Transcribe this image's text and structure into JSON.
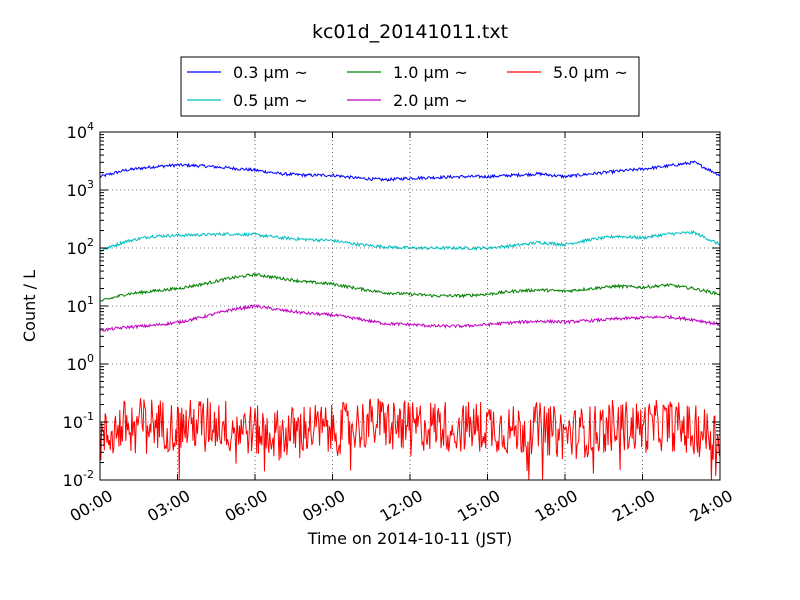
{
  "chart_data": {
    "type": "line",
    "title": "kc01d_20141011.txt",
    "xlabel": "Time on 2014-10-11 (JST)",
    "ylabel": "Count / L",
    "x_unit": "hours",
    "xlim": [
      0,
      24
    ],
    "ylim": [
      0.01,
      10000
    ],
    "yscale": "log",
    "grid": true,
    "legend_position": "top-center",
    "x_ticks": [
      {
        "value": 0,
        "label": "00:00"
      },
      {
        "value": 3,
        "label": "03:00"
      },
      {
        "value": 6,
        "label": "06:00"
      },
      {
        "value": 9,
        "label": "09:00"
      },
      {
        "value": 12,
        "label": "12:00"
      },
      {
        "value": 15,
        "label": "15:00"
      },
      {
        "value": 18,
        "label": "18:00"
      },
      {
        "value": 21,
        "label": "21:00"
      },
      {
        "value": 24,
        "label": "24:00"
      }
    ],
    "y_ticks": [
      {
        "value": 0.01,
        "base": "10",
        "exp": "-2"
      },
      {
        "value": 0.1,
        "base": "10",
        "exp": "-1"
      },
      {
        "value": 1,
        "base": "10",
        "exp": "0"
      },
      {
        "value": 10,
        "base": "10",
        "exp": "1"
      },
      {
        "value": 100,
        "base": "10",
        "exp": "2"
      },
      {
        "value": 1000,
        "base": "10",
        "exp": "3"
      },
      {
        "value": 10000,
        "base": "10",
        "exp": "4"
      }
    ],
    "series": [
      {
        "name": "0.3 μm ~",
        "color": "#0000ff",
        "x": [
          0,
          1,
          2,
          3,
          4,
          5,
          6,
          7,
          8,
          9,
          10,
          11,
          12,
          13,
          14,
          15,
          16,
          17,
          18,
          19,
          20,
          21,
          22,
          23,
          24
        ],
        "values": [
          1700,
          2200,
          2500,
          2700,
          2600,
          2400,
          2200,
          1900,
          1800,
          1800,
          1600,
          1500,
          1600,
          1650,
          1700,
          1700,
          1800,
          1900,
          1700,
          1900,
          2100,
          2300,
          2600,
          3000,
          1800
        ]
      },
      {
        "name": "0.5 μm ~",
        "color": "#00bfbf",
        "x": [
          0,
          1,
          2,
          3,
          4,
          5,
          6,
          7,
          8,
          9,
          10,
          11,
          12,
          13,
          14,
          15,
          16,
          17,
          18,
          19,
          20,
          21,
          22,
          23,
          24
        ],
        "values": [
          90,
          130,
          160,
          165,
          170,
          175,
          170,
          150,
          140,
          135,
          115,
          105,
          100,
          100,
          100,
          100,
          110,
          125,
          115,
          140,
          160,
          150,
          175,
          185,
          115
        ]
      },
      {
        "name": "1.0 μm ~",
        "color": "#008000",
        "x": [
          0,
          1,
          2,
          3,
          4,
          5,
          6,
          7,
          8,
          9,
          10,
          11,
          12,
          13,
          14,
          15,
          16,
          17,
          18,
          19,
          20,
          21,
          22,
          23,
          24
        ],
        "values": [
          12,
          16,
          18,
          20,
          24,
          30,
          35,
          30,
          26,
          24,
          20,
          17,
          16,
          15,
          15,
          16,
          18,
          19,
          18,
          20,
          22,
          21,
          23,
          20,
          16
        ]
      },
      {
        "name": "2.0 μm ~",
        "color": "#bf00bf",
        "x": [
          0,
          1,
          2,
          3,
          4,
          5,
          6,
          7,
          8,
          9,
          10,
          11,
          12,
          13,
          14,
          15,
          16,
          17,
          18,
          19,
          20,
          21,
          22,
          23,
          24
        ],
        "values": [
          3.8,
          4.3,
          4.6,
          5.2,
          6.5,
          8.5,
          10,
          8.5,
          7.5,
          7,
          6,
          5,
          4.8,
          4.5,
          4.5,
          4.8,
          5.2,
          5.5,
          5.3,
          5.6,
          6,
          6.3,
          6.5,
          5.8,
          4.8
        ]
      },
      {
        "name": "5.0 μm ~",
        "color": "#ff0000",
        "x": [
          0,
          1,
          2,
          3,
          4,
          5,
          6,
          7,
          8,
          9,
          10,
          11,
          12,
          13,
          14,
          15,
          16,
          17,
          18,
          19,
          20,
          21,
          22,
          23,
          24
        ],
        "values": [
          0.05,
          0.09,
          0.1,
          0.08,
          0.1,
          0.09,
          0.07,
          0.06,
          0.08,
          0.07,
          0.09,
          0.1,
          0.08,
          0.09,
          0.08,
          0.09,
          0.07,
          0.08,
          0.06,
          0.07,
          0.09,
          0.08,
          0.09,
          0.07,
          0.06
        ],
        "noisy": true
      }
    ]
  }
}
